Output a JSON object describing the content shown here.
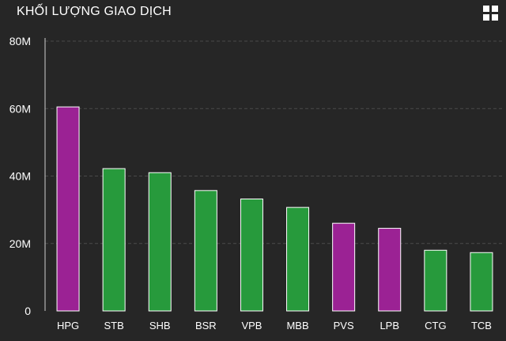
{
  "header": {
    "title": "KHỐI LƯỢNG GIAO DỊCH",
    "menu_icon": "grid-icon"
  },
  "colors": {
    "background": "#262626",
    "green": "#279a3c",
    "purple": "#9b2294",
    "bar_border": "#ffffff",
    "grid": "#4a4a4a",
    "axis": "#cfcfcf"
  },
  "chart_data": {
    "type": "bar",
    "title": "KHỐI LƯỢNG GIAO DỊCH",
    "xlabel": "",
    "ylabel": "",
    "categories": [
      "HPG",
      "STB",
      "SHB",
      "BSR",
      "VPB",
      "MBB",
      "PVS",
      "LPB",
      "CTG",
      "TCB"
    ],
    "values": [
      60500000,
      42200000,
      41000000,
      35700000,
      33200000,
      30700000,
      26000000,
      24500000,
      18000000,
      17300000
    ],
    "bar_colors": [
      "purple",
      "green",
      "green",
      "green",
      "green",
      "green",
      "purple",
      "purple",
      "green",
      "green"
    ],
    "ylim": [
      0,
      80000000
    ],
    "yticks": [
      0,
      20000000,
      40000000,
      60000000,
      80000000
    ],
    "ytick_labels": [
      "0",
      "20M",
      "40M",
      "60M",
      "80M"
    ],
    "grid": true,
    "legend": "none"
  }
}
